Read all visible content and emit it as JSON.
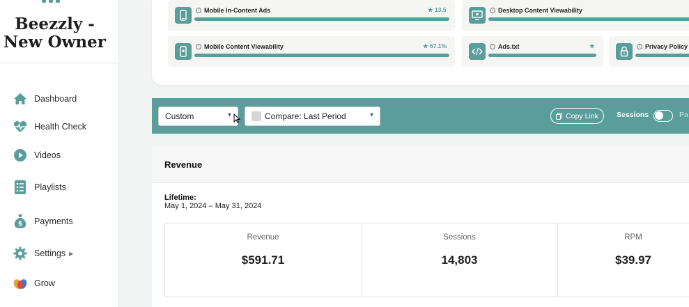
{
  "sidebar": {
    "brand": "Beezzly - New Owner",
    "items": [
      {
        "label": "Dashboard",
        "icon": "home-icon"
      },
      {
        "label": "Health Check",
        "icon": "heartbeat-icon"
      },
      {
        "label": "Videos",
        "icon": "play-circle-icon"
      },
      {
        "label": "Playlists",
        "icon": "list-icon"
      },
      {
        "label": "Payments",
        "icon": "money-bag-icon"
      },
      {
        "label": "Settings",
        "icon": "gear-icon"
      },
      {
        "label": "Grow",
        "icon": "grow-icon"
      }
    ]
  },
  "health": {
    "tiles": [
      {
        "title": "Mobile In-Content Ads",
        "score": "13.5",
        "fill": 1.0
      },
      {
        "title": "Desktop Content Viewability",
        "score": "",
        "fill": 1.0
      },
      {
        "title": "Mobile Content Viewability",
        "score": "67.1%",
        "fill": 1.0
      },
      {
        "title": "Ads.txt",
        "score": "",
        "fill": 1.0
      },
      {
        "title": "Privacy Policy",
        "score": "",
        "fill": 1.0
      }
    ]
  },
  "toolbar": {
    "date_select": "Custom",
    "compare_select": "Compare: Last Period",
    "copy_link": "Copy Link",
    "sessions_label": "Sessions",
    "toggle_on": false,
    "truncated_label": "Pa"
  },
  "revenue": {
    "title": "Revenue",
    "lifetime_label": "Lifetime:",
    "date_range": "May 1, 2024 – May 31, 2024",
    "stats": [
      {
        "label": "Revenue",
        "value": "$591.71"
      },
      {
        "label": "Sessions",
        "value": "14,803"
      },
      {
        "label": "RPM",
        "value": "$39.97"
      }
    ]
  },
  "colors": {
    "accent": "#5a9e9b"
  }
}
